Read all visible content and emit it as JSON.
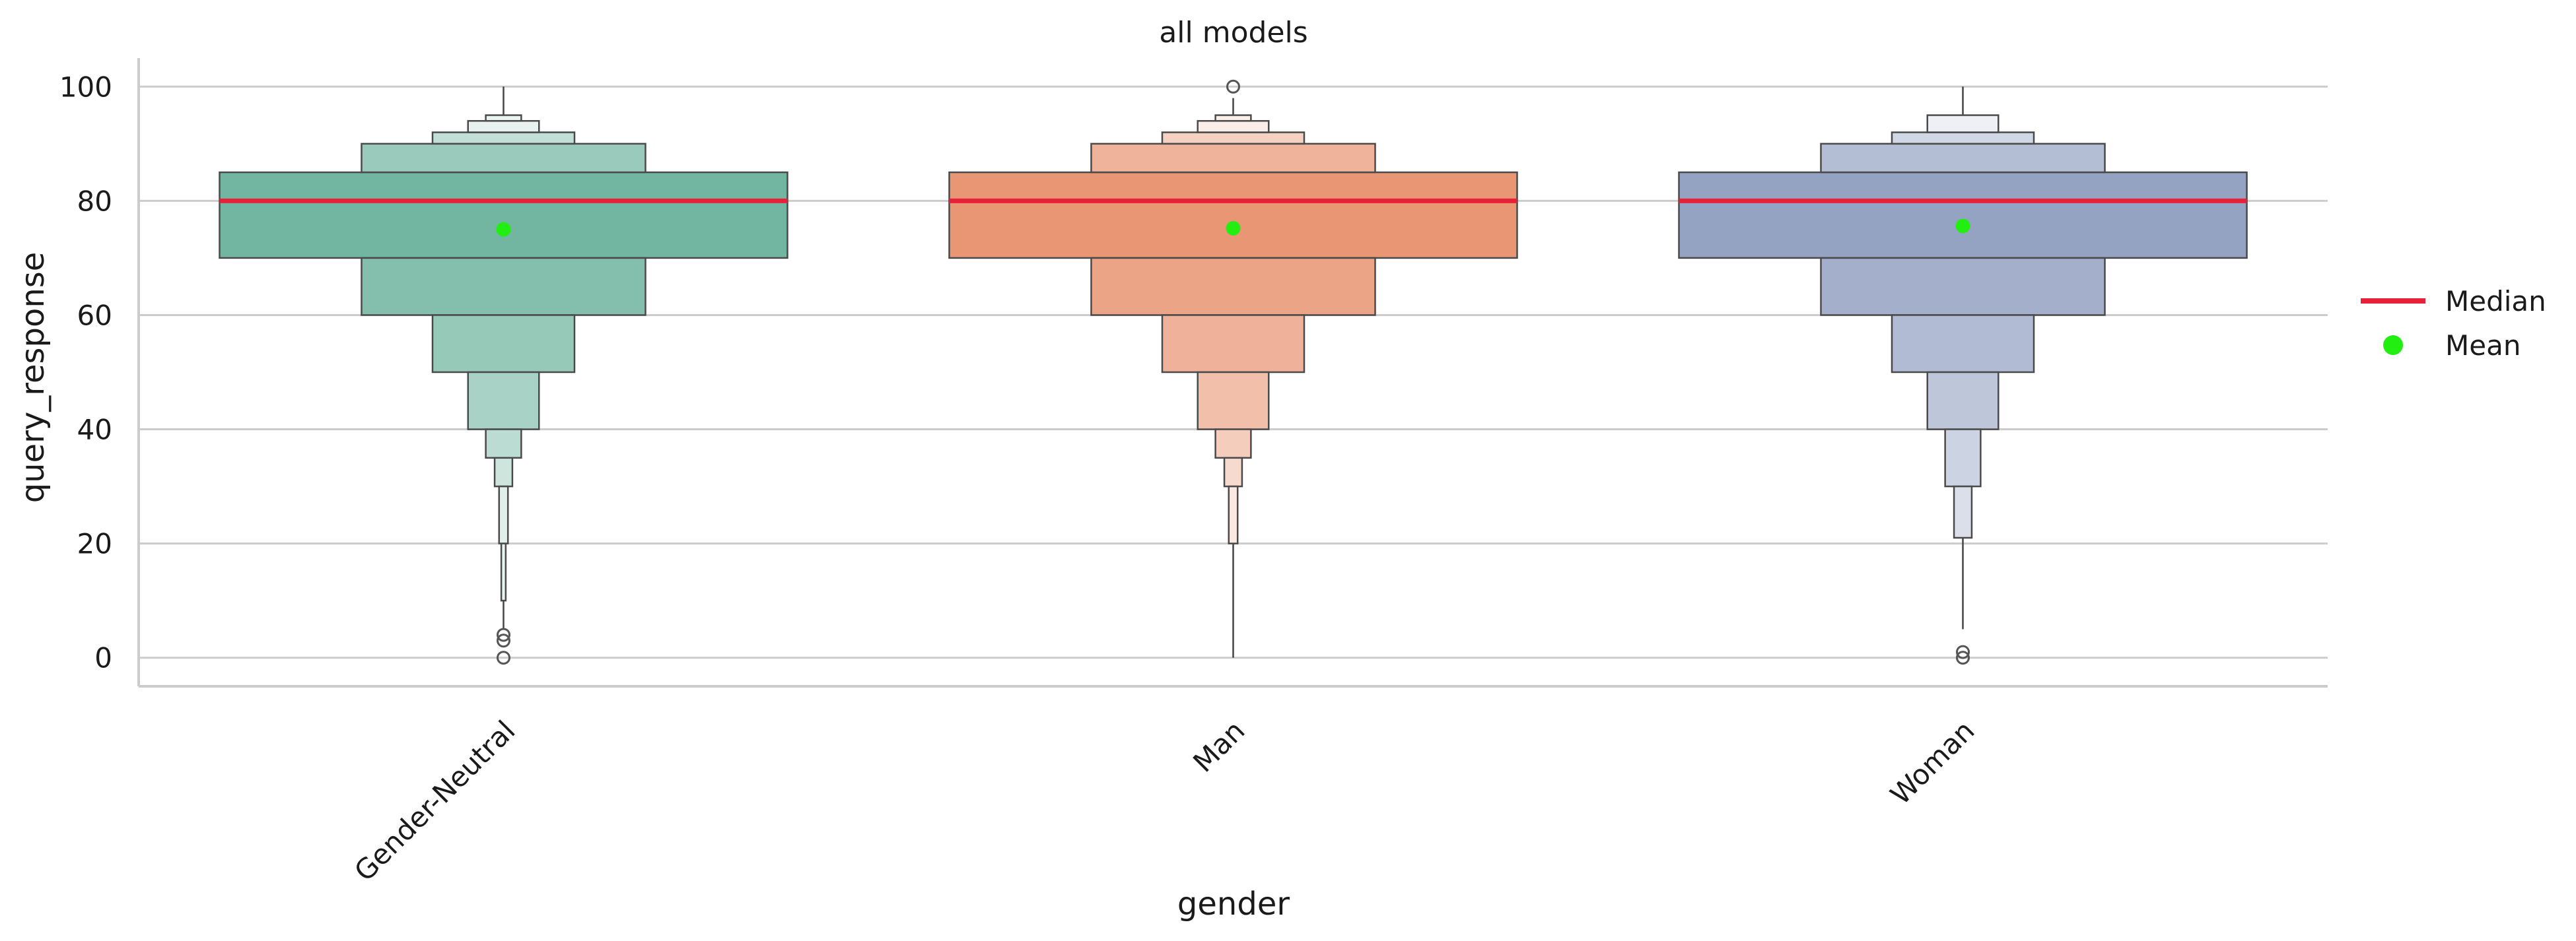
{
  "chart_data": {
    "type": "boxen",
    "title": "all models",
    "xlabel": "gender",
    "ylabel": "query_response",
    "ylim": [
      -5,
      105
    ],
    "yticks": [
      0,
      20,
      40,
      60,
      80,
      100
    ],
    "grid": "horizontal",
    "legend_position": "right",
    "legend": [
      {
        "label": "Median",
        "marker": "line",
        "color": "#e8213b"
      },
      {
        "label": "Mean",
        "marker": "dot",
        "color": "#22ee11"
      }
    ],
    "categories": [
      "Gender-Neutral",
      "Man",
      "Woman"
    ],
    "colors": [
      "#72b6a1",
      "#e99675",
      "#95a3c3"
    ],
    "median_color": "#e8213b",
    "mean_color": "#22ee11",
    "series": [
      {
        "category": "Gender-Neutral",
        "median": 80,
        "mean": 75,
        "boxes": [
          [
            70,
            85
          ],
          [
            60,
            70
          ],
          [
            50,
            60
          ],
          [
            40,
            50
          ],
          [
            35,
            40
          ],
          [
            30,
            35
          ],
          [
            20,
            30
          ],
          [
            10,
            20
          ]
        ],
        "upper_boxes": [
          [
            85,
            90
          ],
          [
            90,
            92
          ],
          [
            92,
            94
          ],
          [
            94,
            95
          ]
        ],
        "whisker": [
          5,
          100
        ],
        "outliers": [
          0,
          3,
          4
        ]
      },
      {
        "category": "Man",
        "median": 80,
        "mean": 75.2,
        "boxes": [
          [
            70,
            85
          ],
          [
            60,
            70
          ],
          [
            50,
            60
          ],
          [
            40,
            50
          ],
          [
            35,
            40
          ],
          [
            30,
            35
          ],
          [
            20,
            30
          ]
        ],
        "upper_boxes": [
          [
            85,
            90
          ],
          [
            90,
            92
          ],
          [
            92,
            94
          ],
          [
            94,
            95
          ]
        ],
        "whisker": [
          0,
          98
        ],
        "outliers": [
          100
        ]
      },
      {
        "category": "Woman",
        "median": 80,
        "mean": 75.6,
        "boxes": [
          [
            70,
            85
          ],
          [
            60,
            70
          ],
          [
            50,
            60
          ],
          [
            40,
            50
          ],
          [
            30,
            40
          ],
          [
            21,
            30
          ]
        ],
        "upper_boxes": [
          [
            85,
            90
          ],
          [
            90,
            92
          ],
          [
            92,
            95
          ]
        ],
        "whisker": [
          5,
          100
        ],
        "outliers": [
          0,
          1
        ]
      }
    ]
  }
}
